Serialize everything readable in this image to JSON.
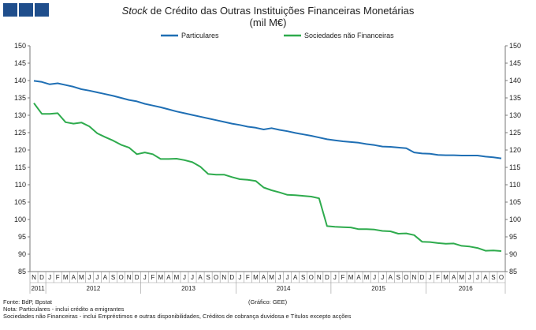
{
  "header": {
    "title_italic": "Stock",
    "title_rest": " de Crédito das Outras Instituições Financeiras Monetárias",
    "subtitle": "(mil M€)"
  },
  "colors": {
    "logo": "#1f4e8c"
  },
  "chart_data": {
    "type": "line",
    "title": "Stock de Crédito das Outras Instituições Financeiras Monetárias",
    "subtitle": "(mil M€)",
    "ylim": [
      85,
      150
    ],
    "yticks": [
      85,
      90,
      95,
      100,
      105,
      110,
      115,
      120,
      125,
      130,
      135,
      140,
      145,
      150
    ],
    "right_axis": true,
    "grid": false,
    "legend_position": "top",
    "month_labels": [
      "N",
      "D",
      "J",
      "F",
      "M",
      "A",
      "M",
      "J",
      "J",
      "A",
      "S",
      "O",
      "N",
      "D",
      "J",
      "F",
      "M",
      "A",
      "M",
      "J",
      "J",
      "A",
      "S",
      "O",
      "N",
      "D",
      "J",
      "F",
      "M",
      "A",
      "M",
      "J",
      "J",
      "A",
      "S",
      "O",
      "N",
      "D",
      "J",
      "F",
      "M",
      "A",
      "M",
      "J",
      "J",
      "A",
      "S",
      "O",
      "N",
      "D",
      "J",
      "F",
      "M",
      "A",
      "M",
      "J",
      "J",
      "A",
      "S",
      "O"
    ],
    "year_labels": [
      {
        "label": "2011",
        "start": 0,
        "end": 1
      },
      {
        "label": "2012",
        "start": 2,
        "end": 13
      },
      {
        "label": "2013",
        "start": 14,
        "end": 25
      },
      {
        "label": "2014",
        "start": 26,
        "end": 37
      },
      {
        "label": "2015",
        "start": 38,
        "end": 49
      },
      {
        "label": "2016",
        "start": 50,
        "end": 59
      }
    ],
    "series": [
      {
        "name": "Particulares",
        "color": "#1f6fb4",
        "values": [
          139.9,
          139.6,
          138.9,
          139.2,
          138.7,
          138.2,
          137.5,
          137.1,
          136.6,
          136.1,
          135.6,
          135.0,
          134.4,
          134.0,
          133.3,
          132.8,
          132.3,
          131.7,
          131.1,
          130.6,
          130.1,
          129.6,
          129.1,
          128.6,
          128.1,
          127.6,
          127.2,
          126.7,
          126.4,
          125.9,
          126.3,
          125.8,
          125.4,
          124.9,
          124.5,
          124.1,
          123.6,
          123.1,
          122.8,
          122.5,
          122.3,
          122.1,
          121.7,
          121.4,
          121.0,
          120.9,
          120.7,
          120.5,
          119.3,
          119.0,
          118.9,
          118.6,
          118.5,
          118.5,
          118.4,
          118.4,
          118.4,
          118.1,
          117.9,
          117.6
        ]
      },
      {
        "name": "Sociedades não Financeiras",
        "color": "#2eab4d",
        "values": [
          133.5,
          130.4,
          130.4,
          130.6,
          128.0,
          127.6,
          127.9,
          126.8,
          124.8,
          123.7,
          122.7,
          121.5,
          120.7,
          118.8,
          119.3,
          118.8,
          117.4,
          117.4,
          117.5,
          117.1,
          116.5,
          115.2,
          113.1,
          112.9,
          112.9,
          112.2,
          111.6,
          111.4,
          111.1,
          109.2,
          108.4,
          107.8,
          107.1,
          107.0,
          106.8,
          106.6,
          106.1,
          98.1,
          97.9,
          97.8,
          97.7,
          97.2,
          97.2,
          97.1,
          96.7,
          96.6,
          95.9,
          96.0,
          95.5,
          93.6,
          93.5,
          93.2,
          93.0,
          93.1,
          92.4,
          92.2,
          91.8,
          91.0,
          91.1,
          90.9
        ]
      }
    ]
  },
  "notes": {
    "line1": "Fonte: BdP, Bpstat",
    "line2": "Nota: Particulares - inclui crédito a emigrantes",
    "line3": "Sociedades não Financeiras - inclui Empréstimos e outras disponibilidades, Créditos de cobrança duvidosa e Títulos excepto acções",
    "source2": "(Gráfico: GEE)"
  }
}
